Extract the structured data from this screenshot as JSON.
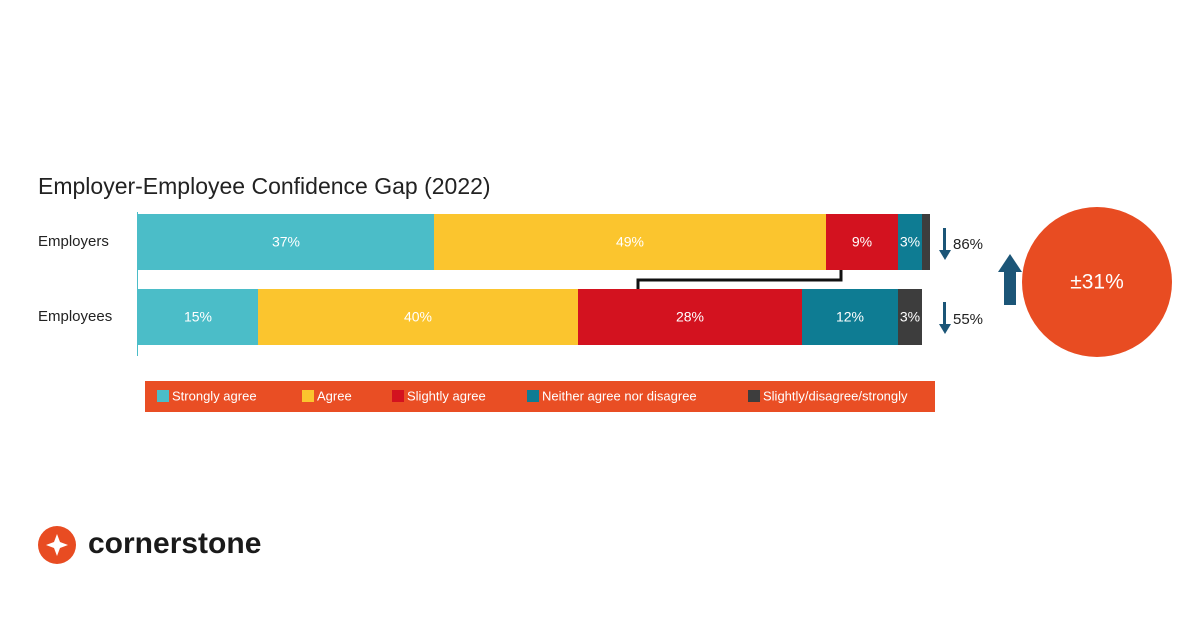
{
  "chart_data": {
    "type": "stacked_bar_horizontal",
    "title": "Employer-Employee Confidence Gap (2022)",
    "categories": [
      "Employers",
      "Employees"
    ],
    "xlim": [
      0,
      100
    ],
    "series": [
      {
        "name": "Strongly agree",
        "color": "#4bbdc8",
        "values": [
          37,
          15
        ],
        "value_labels": [
          "37%",
          "15%"
        ]
      },
      {
        "name": "Agree",
        "color": "#fbc52e",
        "values": [
          49,
          40
        ],
        "value_labels": [
          "49%",
          "40%"
        ]
      },
      {
        "name": "Slightly agree",
        "color": "#d3121f",
        "values": [
          9,
          28
        ],
        "value_labels": [
          "9%",
          "28%"
        ]
      },
      {
        "name": "Neither agree nor disagree",
        "color": "#0e7c93",
        "values": [
          3,
          12
        ],
        "value_labels": [
          "3%",
          "12%"
        ]
      },
      {
        "name": "Slightly/disagree/strongly",
        "color": "#3d3d3d",
        "values": [
          1,
          3
        ],
        "value_labels": [
          null,
          "3%"
        ]
      }
    ],
    "annotations": [
      "86%",
      "55%",
      "±31%"
    ]
  },
  "logo": "cornerstone"
}
